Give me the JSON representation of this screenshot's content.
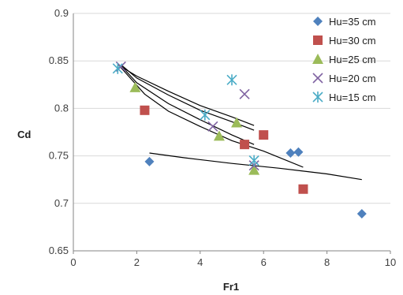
{
  "chart_data": {
    "type": "scatter",
    "xlabel": "Fr1",
    "ylabel": "Cd",
    "xlim": [
      0,
      10
    ],
    "ylim": [
      0.65,
      0.9
    ],
    "x_ticks": [
      "0",
      "2",
      "4",
      "6",
      "8",
      "10"
    ],
    "y_ticks": [
      "0.65",
      "0.7",
      "0.75",
      "0.8",
      "0.85",
      "0.9"
    ],
    "grid": "horizontal",
    "legend_position": "top-right",
    "series": [
      {
        "name": "Hu=35 cm",
        "marker": "diamond",
        "color": "#4F81BD",
        "points": [
          [
            2.4,
            0.744
          ],
          [
            6.85,
            0.753
          ],
          [
            7.1,
            0.754
          ],
          [
            9.1,
            0.689
          ]
        ]
      },
      {
        "name": "Hu=30 cm",
        "marker": "square",
        "color": "#C0504D",
        "points": [
          [
            2.25,
            0.798
          ],
          [
            5.4,
            0.762
          ],
          [
            6.0,
            0.772
          ],
          [
            7.25,
            0.715
          ]
        ]
      },
      {
        "name": "Hu=25 cm",
        "marker": "triangle",
        "color": "#9BBB59",
        "points": [
          [
            1.95,
            0.822
          ],
          [
            4.6,
            0.771
          ],
          [
            5.15,
            0.785
          ],
          [
            5.7,
            0.735
          ]
        ]
      },
      {
        "name": "Hu=20 cm",
        "marker": "x",
        "color": "#8064A2",
        "points": [
          [
            1.5,
            0.844
          ],
          [
            4.4,
            0.781
          ],
          [
            5.4,
            0.815
          ],
          [
            5.7,
            0.74
          ]
        ]
      },
      {
        "name": "Hu=15 cm",
        "marker": "asterisk",
        "color": "#4BACC6",
        "points": [
          [
            1.4,
            0.842
          ],
          [
            4.15,
            0.793
          ],
          [
            5.0,
            0.83
          ],
          [
            5.7,
            0.745
          ]
        ]
      }
    ],
    "trendlines": [
      {
        "series": "Hu=35 cm",
        "points": [
          [
            2.4,
            0.753
          ],
          [
            3.5,
            0.748
          ],
          [
            5.0,
            0.742
          ],
          [
            6.5,
            0.737
          ],
          [
            8.0,
            0.731
          ],
          [
            9.1,
            0.725
          ]
        ]
      },
      {
        "series": "Hu=30 cm",
        "points": [
          [
            1.5,
            0.843
          ],
          [
            2.25,
            0.815
          ],
          [
            3.0,
            0.797
          ],
          [
            4.0,
            0.781
          ],
          [
            5.0,
            0.766
          ],
          [
            6.0,
            0.755
          ],
          [
            7.25,
            0.738
          ]
        ]
      },
      {
        "series": "Hu=25 cm",
        "points": [
          [
            1.5,
            0.845
          ],
          [
            2.0,
            0.827
          ],
          [
            3.0,
            0.805
          ],
          [
            4.0,
            0.788
          ],
          [
            5.0,
            0.772
          ],
          [
            5.7,
            0.762
          ]
        ]
      },
      {
        "series": "Hu=20 cm",
        "points": [
          [
            1.5,
            0.846
          ],
          [
            2.0,
            0.832
          ],
          [
            3.0,
            0.814
          ],
          [
            4.0,
            0.798
          ],
          [
            5.0,
            0.786
          ],
          [
            5.7,
            0.777
          ]
        ]
      },
      {
        "series": "Hu=15 cm",
        "points": [
          [
            1.4,
            0.846
          ],
          [
            2.0,
            0.834
          ],
          [
            3.0,
            0.818
          ],
          [
            4.0,
            0.803
          ],
          [
            5.0,
            0.791
          ],
          [
            5.7,
            0.782
          ]
        ]
      }
    ]
  }
}
